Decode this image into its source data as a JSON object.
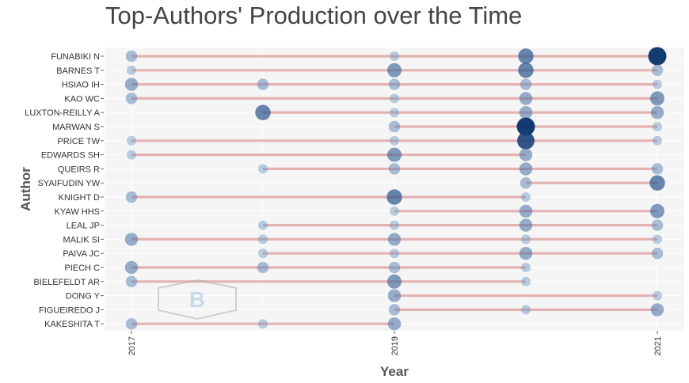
{
  "chart_data": {
    "type": "scatter",
    "title": "Top-Authors' Production over the Time",
    "xlabel": "Year",
    "ylabel": "Author",
    "x_ticks": [
      "2017",
      "2019",
      "2021"
    ],
    "xlim": [
      2016.8,
      2021.2
    ],
    "grid": true,
    "legend": "none",
    "colors": {
      "dot_dark": "#08306b",
      "dot_light": "#6b94c2",
      "line": "#e0a0a0",
      "panel": "#f5f5f5",
      "grid": "#ffffff"
    },
    "authors": [
      {
        "name": "FUNABIKI N",
        "points": [
          [
            2017,
            2
          ],
          [
            2019,
            1
          ],
          [
            2020,
            5
          ],
          [
            2021,
            8
          ]
        ]
      },
      {
        "name": "BARNES T",
        "points": [
          [
            2017,
            1
          ],
          [
            2019,
            4
          ],
          [
            2020,
            5
          ],
          [
            2021,
            2
          ]
        ]
      },
      {
        "name": "HSIAO IH",
        "points": [
          [
            2017,
            3
          ],
          [
            2018,
            2
          ],
          [
            2019,
            2
          ],
          [
            2020,
            2
          ],
          [
            2021,
            1
          ]
        ]
      },
      {
        "name": "KAO WC",
        "points": [
          [
            2017,
            2
          ],
          [
            2019,
            1
          ],
          [
            2020,
            3
          ],
          [
            2021,
            4
          ]
        ]
      },
      {
        "name": "LUXTON-REILLY A",
        "points": [
          [
            2018,
            5
          ],
          [
            2019,
            1
          ],
          [
            2020,
            3
          ],
          [
            2021,
            3
          ]
        ]
      },
      {
        "name": "MARWAN S",
        "points": [
          [
            2019,
            2
          ],
          [
            2020,
            8
          ],
          [
            2021,
            1
          ]
        ]
      },
      {
        "name": "PRICE TW",
        "points": [
          [
            2017,
            1
          ],
          [
            2019,
            1
          ],
          [
            2020,
            7
          ],
          [
            2021,
            1
          ]
        ]
      },
      {
        "name": "EDWARDS SH",
        "points": [
          [
            2017,
            1
          ],
          [
            2019,
            4
          ],
          [
            2020,
            3
          ]
        ]
      },
      {
        "name": "QUEIRS R",
        "points": [
          [
            2018,
            1
          ],
          [
            2019,
            2
          ],
          [
            2020,
            3
          ],
          [
            2021,
            2
          ]
        ]
      },
      {
        "name": "SYAIFUDIN YW",
        "points": [
          [
            2020,
            2
          ],
          [
            2021,
            5
          ]
        ]
      },
      {
        "name": "KNIGHT D",
        "points": [
          [
            2017,
            2
          ],
          [
            2019,
            5
          ],
          [
            2020,
            1
          ]
        ]
      },
      {
        "name": "KYAW HHS",
        "points": [
          [
            2019,
            1
          ],
          [
            2020,
            3
          ],
          [
            2021,
            4
          ]
        ]
      },
      {
        "name": "LEAL JP",
        "points": [
          [
            2018,
            1
          ],
          [
            2019,
            1
          ],
          [
            2020,
            3
          ],
          [
            2021,
            2
          ]
        ]
      },
      {
        "name": "MALIK SI",
        "points": [
          [
            2017,
            3
          ],
          [
            2018,
            1
          ],
          [
            2019,
            3
          ],
          [
            2020,
            1
          ],
          [
            2021,
            1
          ]
        ]
      },
      {
        "name": "PAIVA JC",
        "points": [
          [
            2018,
            1
          ],
          [
            2019,
            1
          ],
          [
            2020,
            3
          ],
          [
            2021,
            2
          ]
        ]
      },
      {
        "name": "PIECH C",
        "points": [
          [
            2017,
            3
          ],
          [
            2018,
            2
          ],
          [
            2019,
            2
          ],
          [
            2020,
            1
          ]
        ]
      },
      {
        "name": "BIELEFELDT AR",
        "points": [
          [
            2017,
            2
          ],
          [
            2019,
            4
          ],
          [
            2020,
            1
          ]
        ]
      },
      {
        "name": "DONG Y",
        "points": [
          [
            2019,
            3
          ],
          [
            2021,
            1
          ]
        ]
      },
      {
        "name": "FIGUEIREDO J",
        "points": [
          [
            2019,
            2
          ],
          [
            2020,
            1
          ],
          [
            2021,
            3
          ]
        ]
      },
      {
        "name": "KAKESHITA T",
        "points": [
          [
            2017,
            2
          ],
          [
            2018,
            1
          ],
          [
            2019,
            3
          ]
        ]
      }
    ]
  }
}
